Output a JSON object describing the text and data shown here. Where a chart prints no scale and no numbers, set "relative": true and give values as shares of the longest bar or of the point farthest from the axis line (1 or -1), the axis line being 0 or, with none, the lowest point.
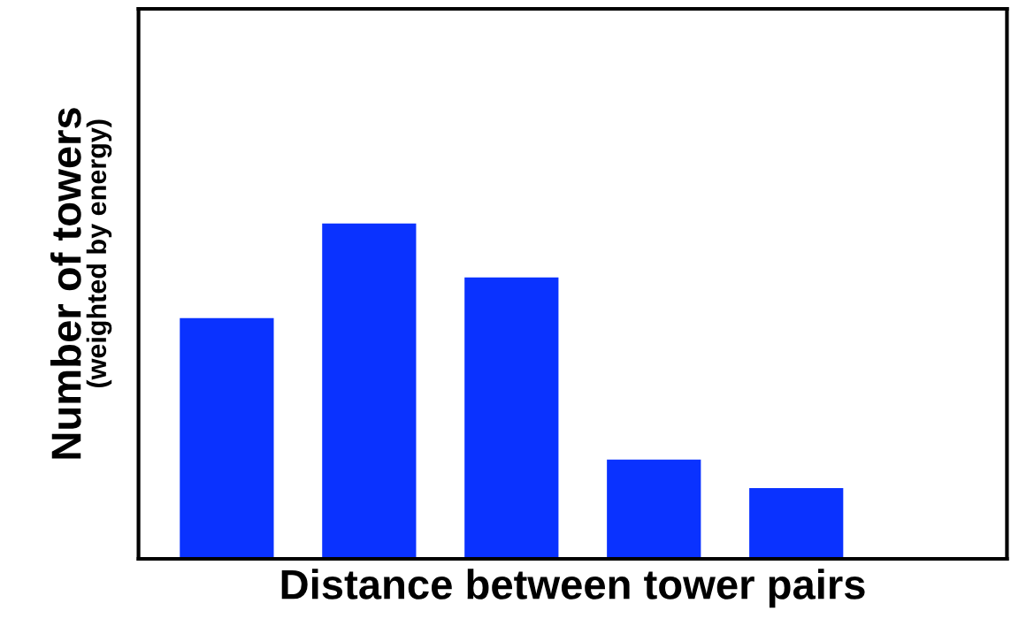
{
  "chart_data": {
    "type": "bar",
    "relative": true,
    "xlabel": "Distance between tower pairs",
    "ylabel": "Number of towers",
    "annotations": [
      "(weighted by energy)"
    ],
    "categories": [
      null,
      null,
      null,
      null,
      null
    ],
    "values": [
      0.718,
      1,
      0.839,
      0.296,
      0.211
    ],
    "color": "#0a32ff",
    "tick_labels": false,
    "grid": false,
    "legend": false
  }
}
